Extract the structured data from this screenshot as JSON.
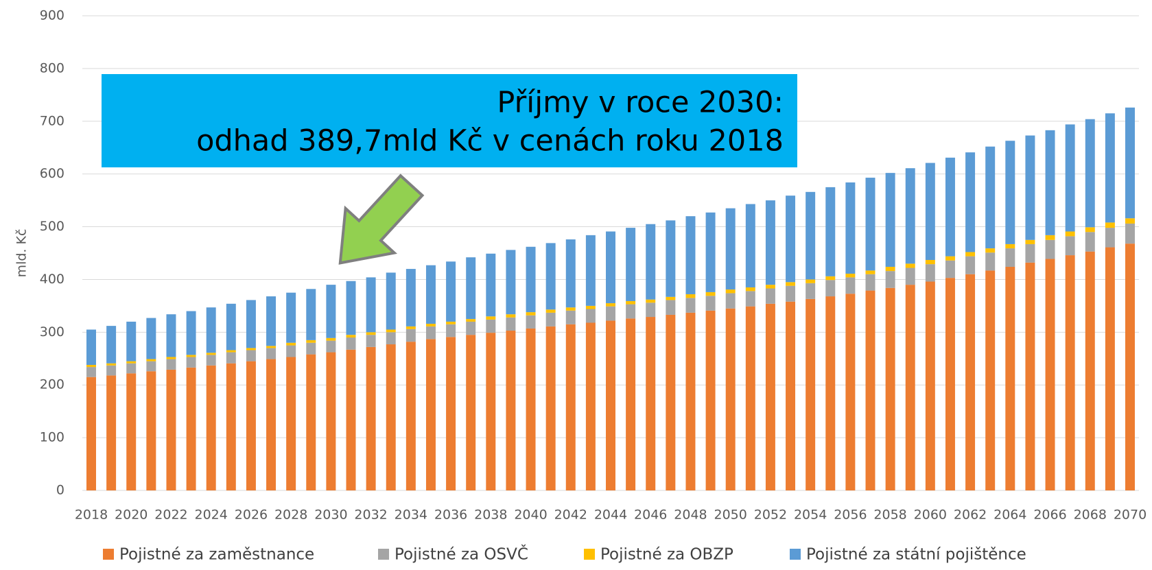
{
  "chart_data": {
    "type": "stacked_bar",
    "y_label": "mld. Kč",
    "annotation": [
      "Příjmy v roce 2030:",
      "odhad 389,7mld Kč v cenách roku 2018"
    ],
    "categories": [
      "2018",
      null,
      "2020",
      null,
      "2022",
      null,
      "2024",
      null,
      "2026",
      null,
      "2028",
      null,
      "2030",
      null,
      "2032",
      null,
      "2034",
      null,
      "2036",
      null,
      "2038",
      null,
      "2040",
      null,
      "2042",
      null,
      "2044",
      null,
      "2046",
      null,
      "2048",
      null,
      "2050",
      null,
      "2052",
      null,
      "2054",
      null,
      "2056",
      null,
      "2058",
      null,
      "2060",
      null,
      "2062",
      null,
      "2064",
      null,
      "2066",
      null,
      "2068",
      null,
      "2070"
    ],
    "series": [
      {
        "name": "Pojistné za zaměstnance",
        "color": "#ed7d31",
        "values": [
          215,
          218,
          222,
          226,
          229,
          233,
          237,
          241,
          245,
          249,
          253,
          258,
          262,
          267,
          272,
          277,
          282,
          287,
          291,
          295,
          299,
          303,
          307,
          311,
          315,
          318,
          322,
          326,
          329,
          333,
          337,
          341,
          345,
          349,
          354,
          358,
          363,
          368,
          373,
          379,
          384,
          390,
          396,
          403,
          410,
          417,
          424,
          432,
          439,
          446,
          453,
          461,
          468
        ]
      },
      {
        "name": "Pojistné za OSVČ",
        "color": "#a5a5a5",
        "values": [
          19,
          19,
          19,
          19,
          20,
          20,
          20,
          21,
          21,
          21,
          22,
          22,
          22,
          23,
          23,
          23,
          24,
          24,
          24,
          25,
          25,
          25,
          25,
          26,
          26,
          26,
          27,
          27,
          27,
          28,
          28,
          28,
          29,
          29,
          29,
          30,
          30,
          31,
          31,
          31,
          32,
          32,
          33,
          33,
          34,
          34,
          35,
          35,
          36,
          36,
          37,
          37,
          38
        ]
      },
      {
        "name": "Pojistné za OBZP",
        "color": "#ffc000",
        "values": [
          4,
          4,
          4,
          4,
          4,
          4,
          4,
          4,
          4,
          4,
          5,
          5,
          5,
          5,
          5,
          5,
          5,
          5,
          5,
          5,
          6,
          6,
          6,
          6,
          6,
          6,
          6,
          6,
          6,
          6,
          7,
          7,
          7,
          7,
          7,
          7,
          7,
          7,
          7,
          7,
          8,
          8,
          8,
          8,
          8,
          8,
          8,
          8,
          9,
          9,
          9,
          10,
          10
        ]
      },
      {
        "name": "Pojistné za státní pojištěnce",
        "color": "#5b9bd5",
        "values": [
          67,
          71,
          75,
          78,
          81,
          83,
          86,
          88,
          91,
          94,
          95,
          97,
          101,
          102,
          104,
          108,
          109,
          111,
          114,
          117,
          119,
          122,
          124,
          126,
          129,
          134,
          136,
          139,
          143,
          145,
          148,
          151,
          154,
          158,
          160,
          164,
          166,
          169,
          173,
          176,
          178,
          181,
          184,
          187,
          189,
          193,
          196,
          198,
          199,
          203,
          205,
          207,
          210
        ]
      }
    ],
    "ylim": [
      0,
      900
    ],
    "yticks": [
      0,
      100,
      200,
      300,
      400,
      500,
      600,
      700,
      800,
      900
    ],
    "grid": true
  }
}
